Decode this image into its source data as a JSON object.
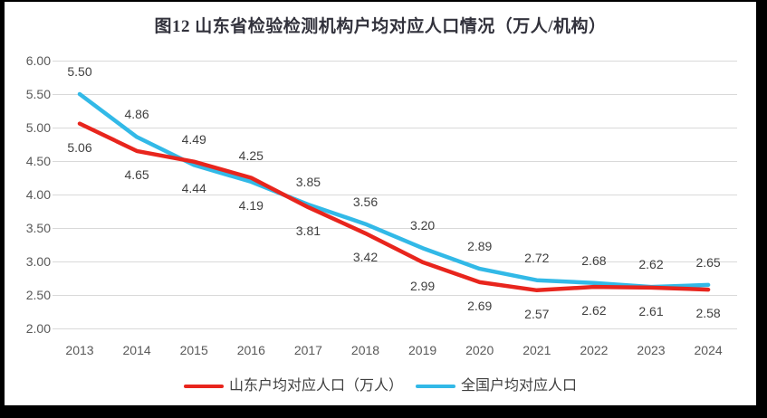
{
  "frame": {
    "border_color": "#000000",
    "canvas_color": "#ffffff"
  },
  "chart_data": {
    "type": "line",
    "title": "图12 山东省检验检测机构户均对应人口情况（万人/机构）",
    "categories": [
      "2013",
      "2014",
      "2015",
      "2016",
      "2017",
      "2018",
      "2019",
      "2020",
      "2021",
      "2022",
      "2023",
      "2024"
    ],
    "series": [
      {
        "name": "山东户均对应人口（万人）",
        "color": "#e8251d",
        "values": [
          5.06,
          4.65,
          4.49,
          4.25,
          3.81,
          3.42,
          2.99,
          2.69,
          2.57,
          2.62,
          2.61,
          2.58
        ]
      },
      {
        "name": "全国户均对应人口",
        "color": "#32b9e7",
        "values": [
          5.5,
          4.86,
          4.44,
          4.19,
          3.85,
          3.56,
          3.2,
          2.89,
          2.72,
          2.68,
          2.62,
          2.65
        ]
      }
    ],
    "xlabel": "",
    "ylabel": "",
    "ylim": [
      2.0,
      6.0
    ],
    "ytick_step": 0.5,
    "ytick_labels": [
      "6.00",
      "5.50",
      "5.00",
      "4.50",
      "4.00",
      "3.50",
      "3.00",
      "2.50",
      "2.00"
    ],
    "grid": true,
    "data_labels": true,
    "legend_position": "bottom",
    "colors": {
      "grid": "#d9d9d9",
      "axis_text": "#595959",
      "data_label_text": "#404040",
      "title_text": "#32323c"
    }
  }
}
